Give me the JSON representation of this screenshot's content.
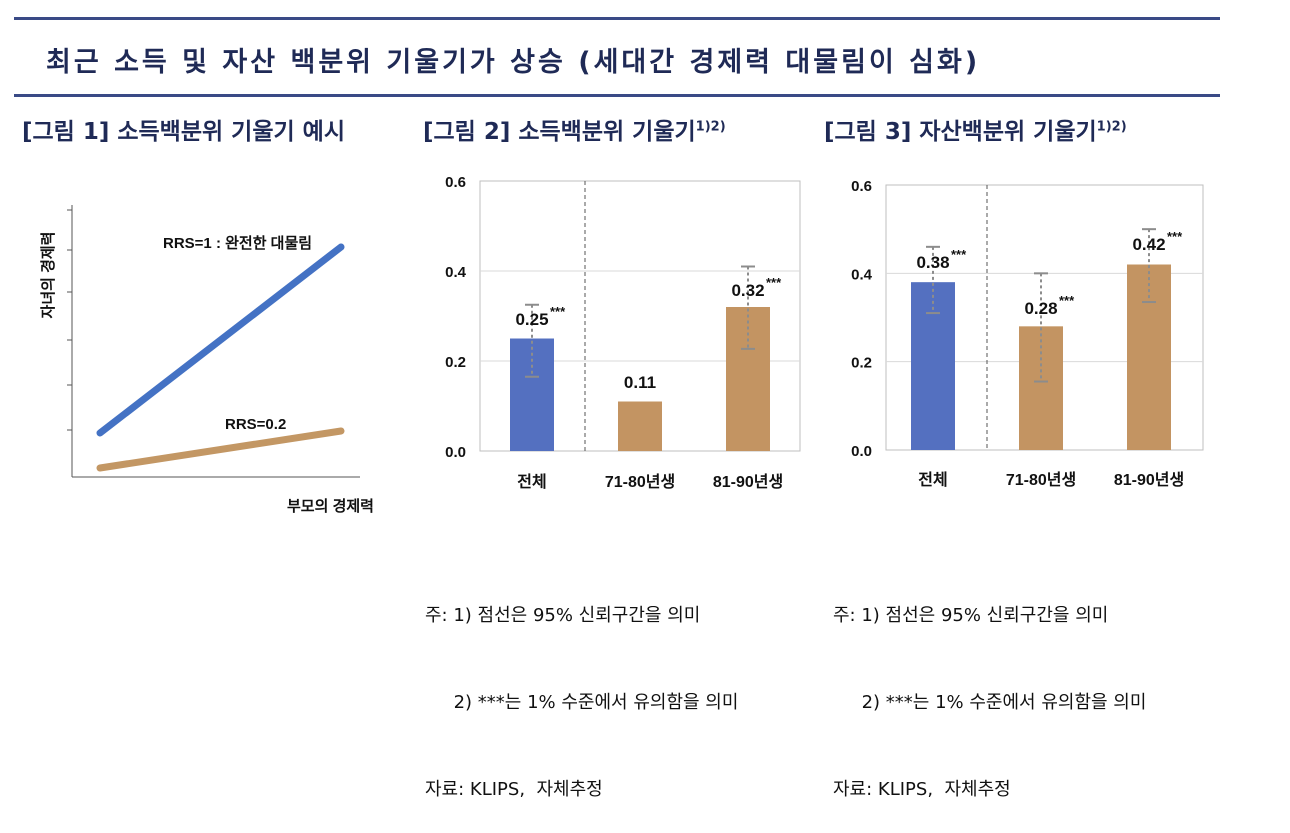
{
  "title": "최근 소득 및 자산 백분위 기울기가 상승 (세대간 경제력 대물림이 심화)",
  "figures": [
    {
      "caption": "[그림 1] 소득백분위 기울기 예시"
    },
    {
      "caption": "[그림 2] 소득백분위 기울기",
      "sup": "1)2)"
    },
    {
      "caption": "[그림 3] 자산백분위 기울기",
      "sup": "1)2)"
    }
  ],
  "notes": {
    "line1": "주: 1) 점선은 95% 신뢰구간을 의미",
    "line2": "     2) ***는 1% 수준에서 유의함을 의미",
    "line3": "자료: KLIPS,  자체추정"
  },
  "chart_data": [
    {
      "type": "line",
      "xlabel": "부모의 경제력",
      "ylabel": "자녀의 경제력",
      "series": [
        {
          "name": "RRS=1 : 완전한 대물림",
          "color": "#4472c4",
          "x": [
            0,
            1
          ],
          "y": [
            0,
            1
          ]
        },
        {
          "name": "RRS=0.2",
          "color": "#c39764",
          "x": [
            0,
            1
          ],
          "y": [
            0,
            0.2
          ]
        }
      ]
    },
    {
      "type": "bar",
      "categories": [
        "전체",
        "71-80년생",
        "81-90년생"
      ],
      "values": [
        0.25,
        0.11,
        0.32
      ],
      "value_labels": [
        "0.25",
        "0.11",
        "0.32"
      ],
      "significance": [
        "***",
        "",
        "***"
      ],
      "ci_low": [
        0.165,
        null,
        0.227
      ],
      "ci_high": [
        0.325,
        null,
        0.41
      ],
      "colors": [
        "#5470c0",
        "#c39462",
        "#c39462"
      ],
      "ylim": [
        0,
        0.6
      ],
      "yticks": [
        "0.0",
        "0.2",
        "0.4",
        "0.6"
      ],
      "grid": true
    },
    {
      "type": "bar",
      "categories": [
        "전체",
        "71-80년생",
        "81-90년생"
      ],
      "values": [
        0.38,
        0.28,
        0.42
      ],
      "value_labels": [
        "0.38",
        "0.28",
        "0.42"
      ],
      "significance": [
        "***",
        "***",
        "***"
      ],
      "ci_low": [
        0.31,
        0.155,
        0.335
      ],
      "ci_high": [
        0.46,
        0.4,
        0.5
      ],
      "colors": [
        "#5470c0",
        "#c39462",
        "#c39462"
      ],
      "ylim": [
        0,
        0.6
      ],
      "yticks": [
        "0.0",
        "0.2",
        "0.4",
        "0.6"
      ],
      "grid": true
    }
  ]
}
